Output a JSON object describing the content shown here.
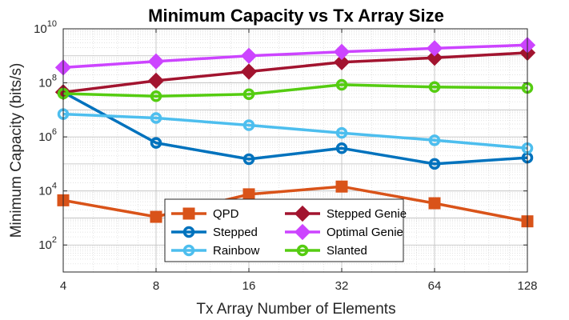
{
  "chart_data": {
    "type": "line",
    "title": "Minimum Capacity vs Tx Array Size",
    "xlabel": "Tx Array Number of Elements",
    "ylabel": "Minimum Capacity (bits/s)",
    "x": [
      4,
      8,
      16,
      32,
      64,
      128
    ],
    "x_tick_labels": [
      "4",
      "8",
      "16",
      "32",
      "64",
      "128"
    ],
    "y_scale": "log",
    "ylim": [
      10,
      10000000000
    ],
    "y_ticks": [
      {
        "base": "10",
        "exp": "2",
        "value": 100
      },
      {
        "base": "10",
        "exp": "4",
        "value": 10000
      },
      {
        "base": "10",
        "exp": "6",
        "value": 1000000
      },
      {
        "base": "10",
        "exp": "8",
        "value": 100000000
      },
      {
        "base": "10",
        "exp": "10",
        "value": 10000000000
      }
    ],
    "grid": true,
    "legend_position": "bottom-left",
    "series": [
      {
        "name": "QPD",
        "color": "#D95319",
        "marker": "square",
        "values": [
          4500,
          1100,
          7500,
          14500,
          3500,
          750
        ]
      },
      {
        "name": "Stepped",
        "color": "#0072BD",
        "marker": "circle",
        "values": [
          45000000,
          600000,
          150000,
          380000,
          100000,
          170000
        ]
      },
      {
        "name": "Rainbow",
        "color": "#4DBEEE",
        "marker": "circle",
        "values": [
          7000000,
          5000000,
          2700000,
          1400000,
          750000,
          380000
        ]
      },
      {
        "name": "Stepped Genie",
        "color": "#A2142F",
        "marker": "diamond",
        "values": [
          45000000,
          120000000,
          260000000,
          580000000,
          850000000,
          1300000000
        ]
      },
      {
        "name": "Optimal Genie",
        "color": "#CC44FF",
        "marker": "diamond",
        "values": [
          370000000,
          620000000,
          1000000000,
          1400000000,
          1900000000,
          2500000000
        ]
      },
      {
        "name": "Slanted",
        "color": "#55CC11",
        "marker": "circle",
        "values": [
          40000000,
          32000000,
          38000000,
          85000000,
          70000000,
          65000000
        ]
      }
    ]
  }
}
